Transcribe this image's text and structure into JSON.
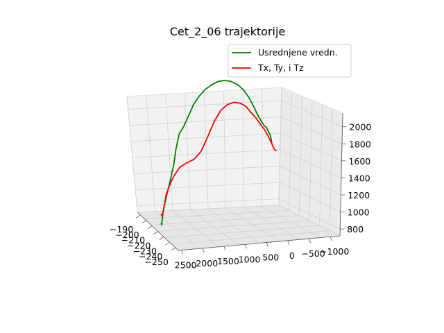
{
  "chart_data": {
    "type": "line3d",
    "title": "Cet_2_06 trajektorije",
    "legend": {
      "placement": "top-right",
      "entries": [
        "Usrednjene vredn.",
        "Tx, Ty, i Tz"
      ]
    },
    "axes": {
      "x": {
        "ticks": [
          "−190",
          "−200",
          "−210",
          "−220",
          "−230",
          "−240",
          "−250"
        ]
      },
      "y": {
        "ticks": [
          "2500",
          "2000",
          "1500",
          "1000",
          "500",
          "0",
          "−500",
          "−1000"
        ]
      },
      "z": {
        "ticks": [
          "800",
          "1000",
          "1200",
          "1400",
          "1600",
          "1800",
          "2000"
        ]
      }
    },
    "grid": true,
    "series": [
      {
        "name": "Usrednjene vredn.",
        "color": "#008000",
        "y": [
          2450,
          2430,
          2400,
          2370,
          2330,
          2270,
          2200,
          2130,
          2080,
          2000,
          1900,
          1780,
          1650,
          1520,
          1380,
          1230,
          1080,
          920,
          760,
          600,
          460,
          330,
          220,
          120,
          30,
          -40,
          -100,
          -150,
          -190,
          -210,
          -230,
          -250
        ],
        "z": [
          920,
          900,
          1000,
          1060,
          1130,
          1220,
          1330,
          1450,
          1580,
          1720,
          1780,
          1880,
          1990,
          2060,
          2120,
          2160,
          2190,
          2200,
          2190,
          2160,
          2110,
          2040,
          1960,
          1880,
          1820,
          1780,
          1760,
          1720,
          1690,
          1660,
          1620,
          1590
        ],
        "x": [
          -232,
          -231,
          -230,
          -229,
          -228,
          -227,
          -226,
          -225,
          -224,
          -223,
          -222,
          -221,
          -220,
          -219,
          -218,
          -217,
          -216,
          -215,
          -214,
          -213,
          -212,
          -211,
          -210,
          -209,
          -208,
          -207,
          -206,
          -205,
          -204,
          -203,
          -202,
          -202
        ]
      },
      {
        "name": "Tx, Ty, i Tz",
        "color": "#ff0000",
        "y": [
          2450,
          2420,
          2380,
          2320,
          2240,
          2140,
          2000,
          1830,
          1660,
          1490,
          1330,
          1170,
          1010,
          850,
          690,
          540,
          400,
          270,
          150,
          40,
          -60,
          -150,
          -230,
          -300,
          -360
        ],
        "z": [
          1000,
          980,
          1060,
          1180,
          1260,
          1340,
          1420,
          1460,
          1490,
          1560,
          1690,
          1830,
          1930,
          1980,
          2000,
          1990,
          1960,
          1900,
          1850,
          1790,
          1740,
          1680,
          1620,
          1560,
          1540
        ],
        "x": [
          -232,
          -232,
          -231,
          -230,
          -229,
          -228,
          -227,
          -226,
          -225,
          -224,
          -222,
          -220,
          -218,
          -216,
          -214,
          -212,
          -210,
          -208,
          -206,
          -204,
          -202,
          -200,
          -198,
          -196,
          -195
        ]
      }
    ]
  }
}
